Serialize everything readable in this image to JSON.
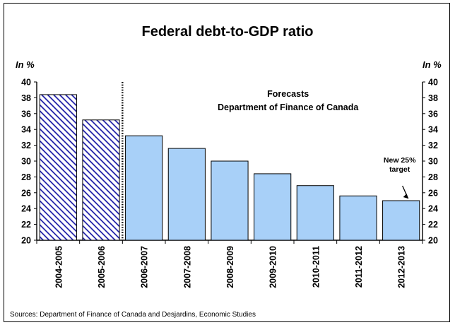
{
  "chart_data": {
    "type": "bar",
    "title": "Federal debt-to-GDP ratio",
    "ylabel_left": "In %",
    "ylabel_right": "In %",
    "ylim": [
      20,
      40
    ],
    "yticks": [
      20,
      22,
      24,
      26,
      28,
      30,
      32,
      34,
      36,
      38,
      40
    ],
    "categories": [
      "2004-2005",
      "2005-2006",
      "2006-2007",
      "2007-2008",
      "2008-2009",
      "2009-2010",
      "2010-2011",
      "2011-2012",
      "2012-2013"
    ],
    "values": [
      38.4,
      35.2,
      33.2,
      31.6,
      30.0,
      28.4,
      26.9,
      25.6,
      25.0
    ],
    "actual_categories": [
      "2004-2005",
      "2005-2006"
    ],
    "forecast_categories": [
      "2006-2007",
      "2007-2008",
      "2008-2009",
      "2009-2010",
      "2010-2011",
      "2011-2012",
      "2012-2013"
    ],
    "annotations": {
      "forecast_line1": "Forecasts",
      "forecast_line2": "Department of Finance of Canada",
      "target_line1": "New 25%",
      "target_line2": "target"
    },
    "grid": false,
    "colors": {
      "actual_hatch": "#1a1aa6",
      "forecast_fill": "#a8d0f8"
    }
  },
  "source": "Sources: Department of Finance of Canada and Desjardins, Economic Studies"
}
